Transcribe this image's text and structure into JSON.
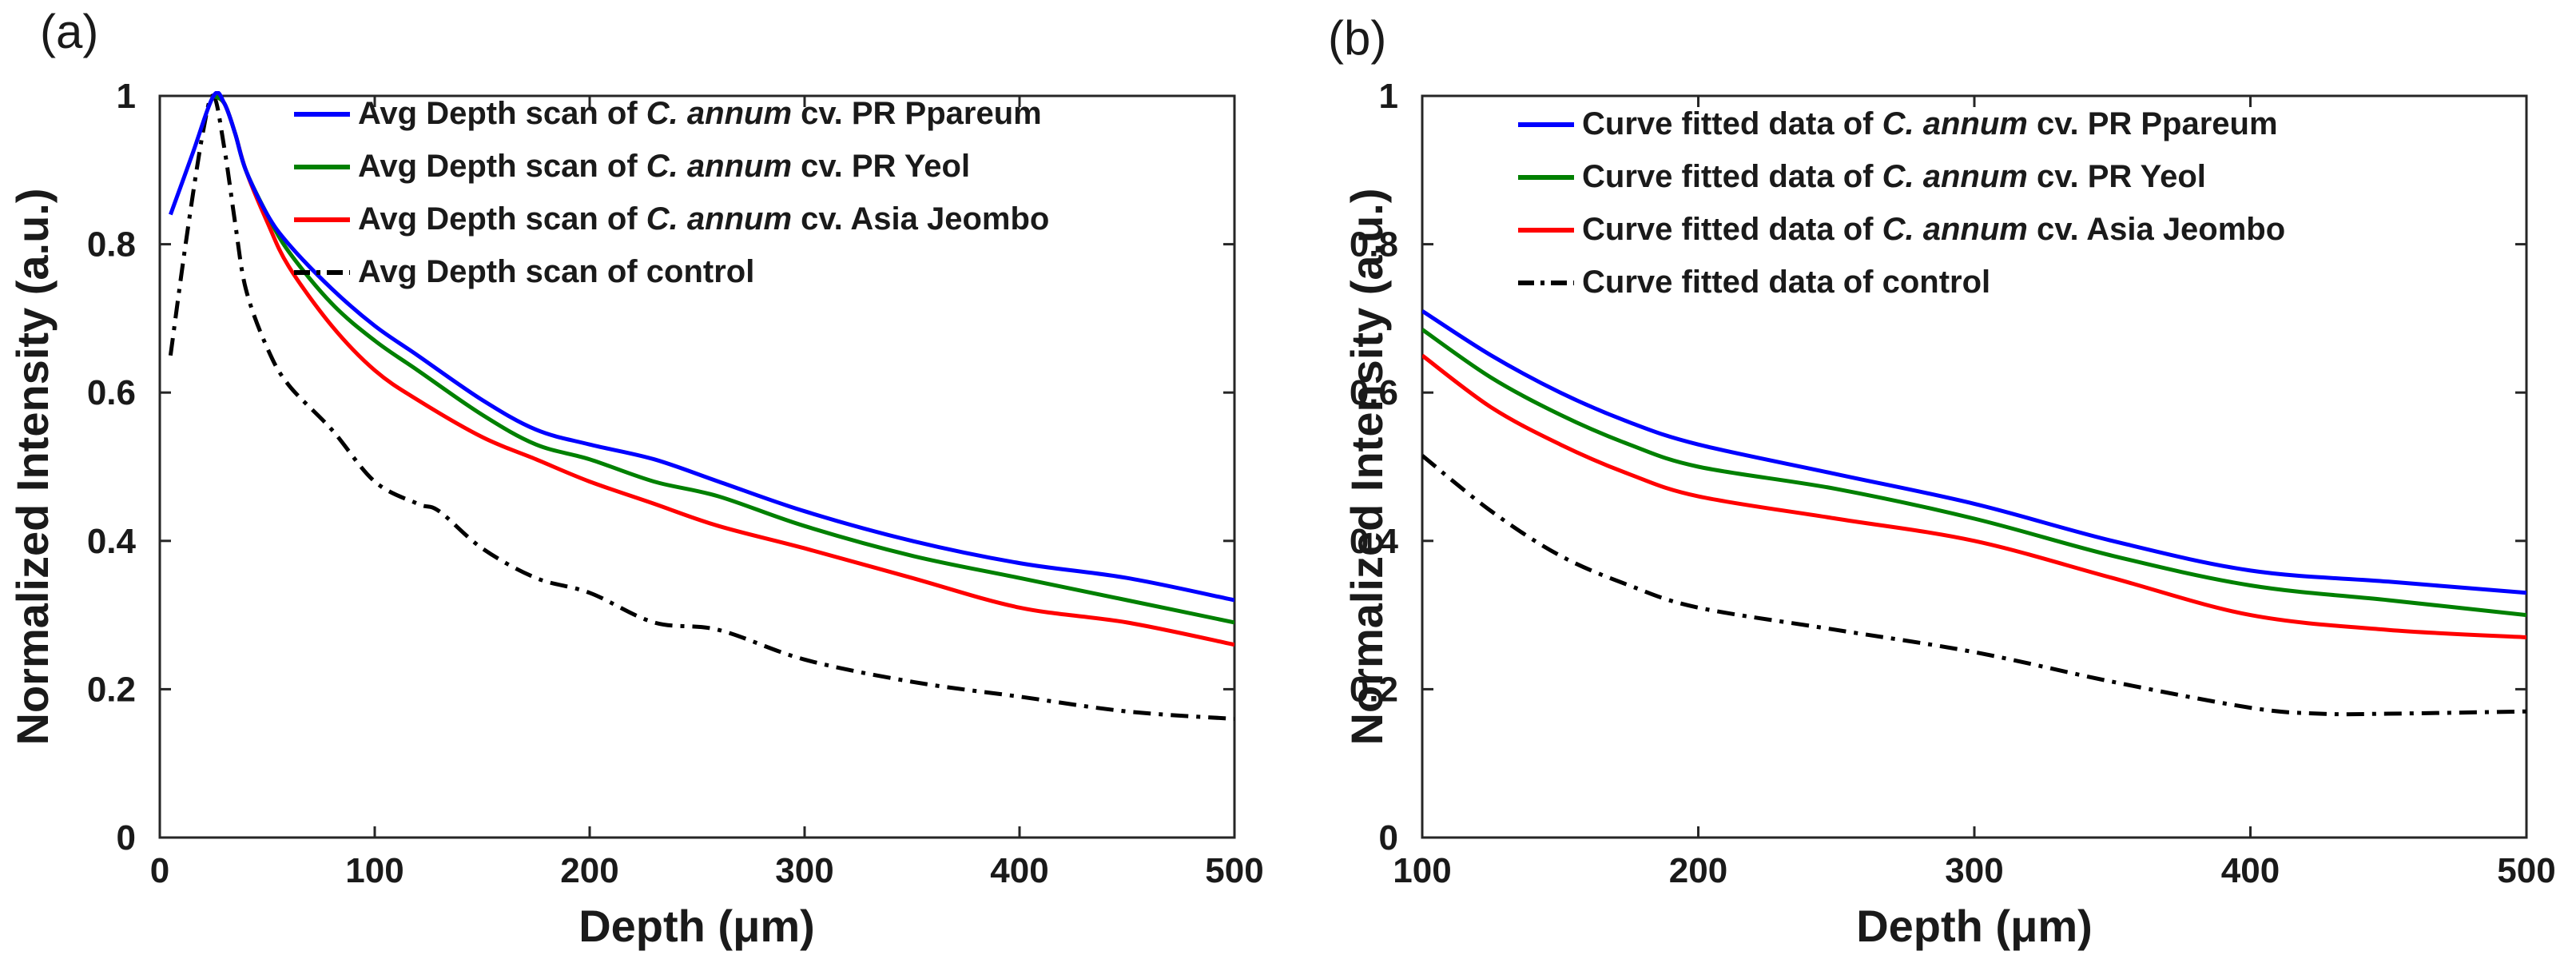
{
  "chart_data": [
    {
      "panel_label": "(a)",
      "type": "line",
      "xlabel": "Depth (μm)",
      "ylabel": "Normalized Intensity (a.u.)",
      "xlim": [
        0,
        500
      ],
      "ylim": [
        0,
        1
      ],
      "xticks": [
        "0",
        "100",
        "200",
        "300",
        "400",
        "500"
      ],
      "yticks": [
        "0",
        "0.2",
        "0.4",
        "0.6",
        "0.8",
        "1"
      ],
      "legend_position": "top-right",
      "series": [
        {
          "name": "Avg Depth scan of C. annum cv. PR Ppareum",
          "legend": {
            "pre": "Avg Depth scan of ",
            "italic": "C. annum",
            "post": " cv. PR Ppareum"
          },
          "color": "#0000ff",
          "style": "solid",
          "x": [
            5,
            15,
            25,
            30,
            35,
            40,
            50,
            60,
            80,
            100,
            120,
            150,
            175,
            200,
            230,
            260,
            300,
            350,
            400,
            450,
            500
          ],
          "y": [
            0.84,
            0.92,
            1.0,
            0.99,
            0.95,
            0.9,
            0.84,
            0.8,
            0.74,
            0.69,
            0.65,
            0.59,
            0.55,
            0.53,
            0.51,
            0.48,
            0.44,
            0.4,
            0.37,
            0.35,
            0.32
          ]
        },
        {
          "name": "Avg Depth scan of C. annum cv. PR Yeol",
          "legend": {
            "pre": "Avg Depth scan of ",
            "italic": "C. annum",
            "post": " cv. PR Yeol"
          },
          "color": "#008000",
          "style": "solid",
          "x": [
            25,
            30,
            35,
            40,
            50,
            60,
            80,
            100,
            120,
            150,
            175,
            200,
            230,
            260,
            300,
            350,
            400,
            450,
            500
          ],
          "y": [
            1.0,
            0.99,
            0.95,
            0.9,
            0.84,
            0.79,
            0.72,
            0.67,
            0.63,
            0.57,
            0.53,
            0.51,
            0.48,
            0.46,
            0.42,
            0.38,
            0.35,
            0.32,
            0.29
          ]
        },
        {
          "name": "Avg Depth scan of C. annum cv. Asia Jeombo",
          "legend": {
            "pre": "Avg Depth scan of ",
            "italic": "C. annum",
            "post": " cv. Asia Jeombo"
          },
          "color": "#ff0000",
          "style": "solid",
          "x": [
            25,
            30,
            35,
            40,
            50,
            60,
            80,
            100,
            120,
            150,
            175,
            200,
            230,
            260,
            300,
            350,
            400,
            450,
            500
          ],
          "y": [
            1.0,
            0.99,
            0.95,
            0.9,
            0.83,
            0.77,
            0.69,
            0.63,
            0.59,
            0.54,
            0.51,
            0.48,
            0.45,
            0.42,
            0.39,
            0.35,
            0.31,
            0.29,
            0.26
          ]
        },
        {
          "name": "Avg Depth scan of control",
          "legend": {
            "pre": "Avg Depth scan of control",
            "italic": "",
            "post": ""
          },
          "color": "#000000",
          "style": "dashdot",
          "x": [
            5,
            12,
            20,
            25,
            30,
            35,
            40,
            50,
            60,
            80,
            100,
            120,
            130,
            150,
            175,
            200,
            230,
            260,
            300,
            350,
            400,
            450,
            500
          ],
          "y": [
            0.65,
            0.8,
            0.95,
            1.0,
            0.93,
            0.83,
            0.74,
            0.66,
            0.61,
            0.55,
            0.48,
            0.45,
            0.44,
            0.39,
            0.35,
            0.33,
            0.29,
            0.28,
            0.24,
            0.21,
            0.19,
            0.17,
            0.16
          ]
        }
      ]
    },
    {
      "panel_label": "(b)",
      "type": "line",
      "xlabel": "Depth (μm)",
      "ylabel": "Normalized Intensity (a.u.)",
      "xlim": [
        100,
        500
      ],
      "ylim": [
        0,
        1
      ],
      "xticks": [
        "100",
        "200",
        "300",
        "400",
        "500"
      ],
      "yticks": [
        "0",
        "0.2",
        "0.4",
        "0.6",
        "0.8",
        "1"
      ],
      "legend_position": "top-right",
      "series": [
        {
          "name": "Curve fitted data of C. annum cv. PR Ppareum",
          "legend": {
            "pre": "Curve fitted data of ",
            "italic": "C. annum",
            "post": " cv. PR Ppareum"
          },
          "color": "#0000ff",
          "style": "solid",
          "x": [
            100,
            125,
            150,
            175,
            200,
            250,
            300,
            350,
            400,
            450,
            500
          ],
          "y": [
            0.71,
            0.65,
            0.6,
            0.56,
            0.53,
            0.49,
            0.45,
            0.4,
            0.36,
            0.345,
            0.33
          ]
        },
        {
          "name": "Curve fitted data of C. annum cv. PR Yeol",
          "legend": {
            "pre": "Curve fitted data of ",
            "italic": "C. annum",
            "post": " cv. PR Yeol"
          },
          "color": "#008000",
          "style": "solid",
          "x": [
            100,
            125,
            150,
            175,
            200,
            250,
            300,
            350,
            400,
            450,
            500
          ],
          "y": [
            0.685,
            0.62,
            0.57,
            0.53,
            0.5,
            0.47,
            0.43,
            0.38,
            0.34,
            0.32,
            0.3
          ]
        },
        {
          "name": "Curve fitted data of C. annum cv. Asia Jeombo",
          "legend": {
            "pre": "Curve fitted data of ",
            "italic": "C. annum",
            "post": " cv. Asia Jeombo"
          },
          "color": "#ff0000",
          "style": "solid",
          "x": [
            100,
            125,
            150,
            175,
            200,
            250,
            300,
            350,
            400,
            450,
            500
          ],
          "y": [
            0.65,
            0.58,
            0.53,
            0.49,
            0.46,
            0.43,
            0.4,
            0.35,
            0.3,
            0.28,
            0.27
          ]
        },
        {
          "name": "Curve fitted data of control",
          "legend": {
            "pre": "Curve fitted data of control",
            "italic": "",
            "post": ""
          },
          "color": "#000000",
          "style": "dashdot",
          "x": [
            100,
            125,
            150,
            175,
            200,
            250,
            300,
            350,
            400,
            425,
            450,
            500
          ],
          "y": [
            0.515,
            0.44,
            0.38,
            0.34,
            0.31,
            0.28,
            0.25,
            0.21,
            0.175,
            0.167,
            0.167,
            0.17
          ]
        }
      ]
    }
  ]
}
